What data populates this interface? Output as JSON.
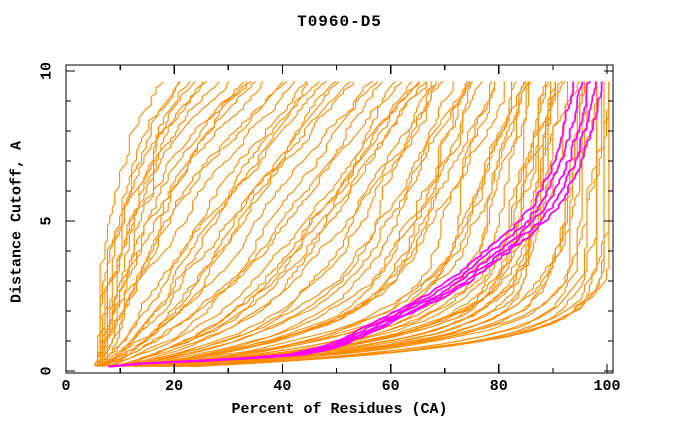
{
  "title": "T0960-D5",
  "axes": {
    "x_label": "Percent of Residues (CA)",
    "y_label": "Distance Cutoff, A",
    "x_tick_labels": [
      "0",
      "20",
      "40",
      "60",
      "80",
      "100"
    ],
    "y_tick_labels": [
      "0",
      "5",
      "10"
    ]
  },
  "chart_data": {
    "type": "line",
    "title": "T0960-D5",
    "xlabel": "Percent of Residues (CA)",
    "ylabel": "Distance Cutoff, A",
    "xlim": [
      0,
      100
    ],
    "ylim": [
      0,
      10
    ],
    "x_major_ticks": [
      0,
      20,
      40,
      60,
      80,
      100
    ],
    "x_minor_ticks": [
      10,
      30,
      50,
      70,
      90
    ],
    "y_major_ticks": [
      0,
      5,
      10
    ],
    "y_minor_ticks": [
      1,
      2,
      3,
      4,
      6,
      7,
      8,
      9
    ],
    "grid": false,
    "legend": null,
    "colors": {
      "models": "#ff8c00",
      "best_models": "#ff00ff",
      "axis": "#000000",
      "background": "#ffffff"
    },
    "series_groups": [
      {
        "name": "model-gdt-curves",
        "color": "#ff8c00",
        "style": "jagged-monotone-cdf",
        "y_range": [
          0.15,
          9.65
        ],
        "start_percent_range": [
          4.3,
          7.0
        ],
        "end_percents": [
          17.5,
          19,
          20.5,
          22,
          23.5,
          25,
          26.5,
          28,
          29.5,
          31,
          32.5,
          34,
          35.5,
          37,
          38.5,
          40,
          41.5,
          43,
          44.5,
          46,
          47.5,
          49,
          50.5,
          52,
          53.5,
          55,
          56.5,
          58,
          59.5,
          61,
          62,
          63,
          64,
          65,
          66,
          67,
          68,
          69,
          70,
          71,
          72,
          73,
          74,
          75,
          76,
          77,
          78,
          79,
          80,
          81,
          82,
          83,
          84,
          85,
          85.5,
          86,
          86.5,
          87,
          87.5,
          88,
          88.5,
          89,
          89.5,
          90,
          90.5,
          91,
          91.5,
          92,
          92.5,
          93,
          93.5,
          94,
          94.5,
          95,
          95.5,
          96,
          96.5,
          97,
          97.5,
          98,
          98.5,
          99,
          99.3,
          99.6,
          100
        ]
      },
      {
        "name": "best-model-gdt-curves",
        "color": "#ff00ff",
        "count": 5,
        "scales": [
          0.97,
          0.985,
          1.0,
          1.012,
          1.025
        ],
        "base_curve": [
          [
            0.15,
            8
          ],
          [
            0.25,
            14
          ],
          [
            0.3,
            19
          ],
          [
            0.35,
            26
          ],
          [
            0.45,
            36
          ],
          [
            0.55,
            43
          ],
          [
            0.8,
            49
          ],
          [
            1.2,
            54
          ],
          [
            1.6,
            58.5
          ],
          [
            2.0,
            63
          ],
          [
            2.5,
            68.5
          ],
          [
            3.0,
            73
          ],
          [
            3.5,
            76.5
          ],
          [
            4.0,
            80
          ],
          [
            4.5,
            83.5
          ],
          [
            5.0,
            86.5
          ],
          [
            5.5,
            88.8
          ],
          [
            6.0,
            90.5
          ],
          [
            6.5,
            91.8
          ],
          [
            7.0,
            92.9
          ],
          [
            7.5,
            93.8
          ],
          [
            8.0,
            94.6
          ],
          [
            8.5,
            95.3
          ],
          [
            9.0,
            95.9
          ],
          [
            9.65,
            96.6
          ]
        ]
      }
    ]
  }
}
